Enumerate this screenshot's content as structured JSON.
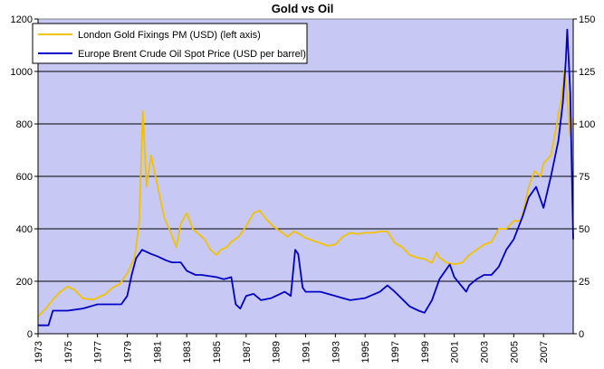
{
  "chart_data": {
    "type": "line",
    "title": "Gold vs Oil",
    "x_axis": {
      "range": [
        1973,
        2009
      ],
      "tick_labels": [
        "1973",
        "1975",
        "1977",
        "1979",
        "1981",
        "1983",
        "1985",
        "1987",
        "1989",
        "1991",
        "1993",
        "1995",
        "1997",
        "1999",
        "2001",
        "2003",
        "2005",
        "2007"
      ]
    },
    "y_left": {
      "range": [
        0,
        1200
      ],
      "ticks": [
        "0",
        "200",
        "400",
        "600",
        "800",
        "1000",
        "1200"
      ]
    },
    "y_right": {
      "range": [
        0,
        150
      ],
      "ticks": [
        "0",
        "25",
        "50",
        "75",
        "100",
        "125",
        "150"
      ]
    },
    "grid": "horizontal",
    "legend_position": "top-left",
    "colors": {
      "plot_bg": "#c8c8f4",
      "gold": "#f2c200",
      "oil": "#0000c8",
      "grid": "#000000"
    },
    "series": [
      {
        "name": "London Gold Fixings PM (USD) (left axis)",
        "axis": "left",
        "x": [
          1973.0,
          1973.5,
          1974.0,
          1974.5,
          1975.0,
          1975.5,
          1976.0,
          1976.7,
          1977.5,
          1978.0,
          1978.5,
          1979.0,
          1979.5,
          1979.8,
          1980.05,
          1980.3,
          1980.6,
          1980.9,
          1981.2,
          1981.5,
          1981.9,
          1982.3,
          1982.6,
          1983.0,
          1983.4,
          1983.8,
          1984.2,
          1984.6,
          1985.0,
          1985.3,
          1985.7,
          1986.0,
          1986.5,
          1987.0,
          1987.5,
          1987.9,
          1988.3,
          1988.8,
          1989.3,
          1989.8,
          1990.2,
          1990.6,
          1991.0,
          1991.5,
          1992.0,
          1992.5,
          1993.0,
          1993.5,
          1994.0,
          1994.5,
          1995.0,
          1995.5,
          1996.0,
          1996.5,
          1997.0,
          1997.5,
          1998.0,
          1998.5,
          1999.0,
          1999.5,
          1999.8,
          2000.0,
          2000.5,
          2001.0,
          2001.5,
          2002.0,
          2002.5,
          2003.0,
          2003.5,
          2004.0,
          2004.5,
          2005.0,
          2005.5,
          2006.0,
          2006.4,
          2006.8,
          2007.0,
          2007.5,
          2007.9,
          2008.2,
          2008.4,
          2008.6,
          2008.8,
          2009.0
        ],
        "values": [
          65,
          95,
          130,
          160,
          180,
          165,
          135,
          130,
          150,
          175,
          190,
          230,
          290,
          420,
          850,
          560,
          680,
          600,
          520,
          440,
          390,
          330,
          420,
          460,
          400,
          380,
          360,
          320,
          300,
          320,
          330,
          350,
          370,
          410,
          460,
          470,
          440,
          410,
          390,
          370,
          390,
          380,
          365,
          355,
          345,
          335,
          340,
          370,
          385,
          380,
          385,
          385,
          390,
          390,
          345,
          330,
          300,
          290,
          285,
          270,
          310,
          290,
          270,
          265,
          270,
          300,
          320,
          340,
          350,
          400,
          400,
          430,
          430,
          560,
          620,
          600,
          650,
          680,
          800,
          900,
          1000,
          900,
          750,
          820
        ]
      },
      {
        "name": "Europe Brent Crude Oil Spot Price (USD per barrel)",
        "axis": "right",
        "x": [
          1973.0,
          1973.7,
          1974.0,
          1975.0,
          1976.0,
          1977.0,
          1978.0,
          1978.6,
          1979.0,
          1979.3,
          1979.6,
          1980.0,
          1980.6,
          1981.0,
          1981.6,
          1982.0,
          1982.6,
          1983.0,
          1983.6,
          1984.0,
          1985.0,
          1985.5,
          1986.0,
          1986.3,
          1986.6,
          1987.0,
          1987.5,
          1988.0,
          1988.7,
          1989.0,
          1989.6,
          1990.0,
          1990.3,
          1990.5,
          1990.8,
          1991.0,
          1991.5,
          1992.0,
          1993.0,
          1993.5,
          1994.0,
          1995.0,
          1996.0,
          1996.5,
          1997.0,
          1998.0,
          1998.6,
          1999.0,
          1999.5,
          2000.0,
          2000.7,
          2001.0,
          2001.8,
          2002.0,
          2002.5,
          2003.0,
          2003.5,
          2004.0,
          2004.5,
          2005.0,
          2005.6,
          2006.0,
          2006.5,
          2007.0,
          2007.5,
          2008.0,
          2008.3,
          2008.5,
          2008.6,
          2008.8,
          2009.0
        ],
        "values": [
          4,
          4,
          11,
          11,
          12,
          14,
          14,
          14,
          18,
          28,
          36,
          40,
          38,
          37,
          35,
          34,
          34,
          30,
          28,
          28,
          27,
          26,
          27,
          14,
          12,
          18,
          19,
          16,
          17,
          18,
          20,
          18,
          40,
          38,
          22,
          20,
          20,
          20,
          18,
          17,
          16,
          17,
          20,
          23,
          20,
          13,
          11,
          10,
          16,
          26,
          33,
          27,
          20,
          23,
          26,
          28,
          28,
          32,
          40,
          45,
          56,
          65,
          70,
          60,
          75,
          92,
          110,
          130,
          145,
          115,
          45
        ]
      }
    ]
  }
}
